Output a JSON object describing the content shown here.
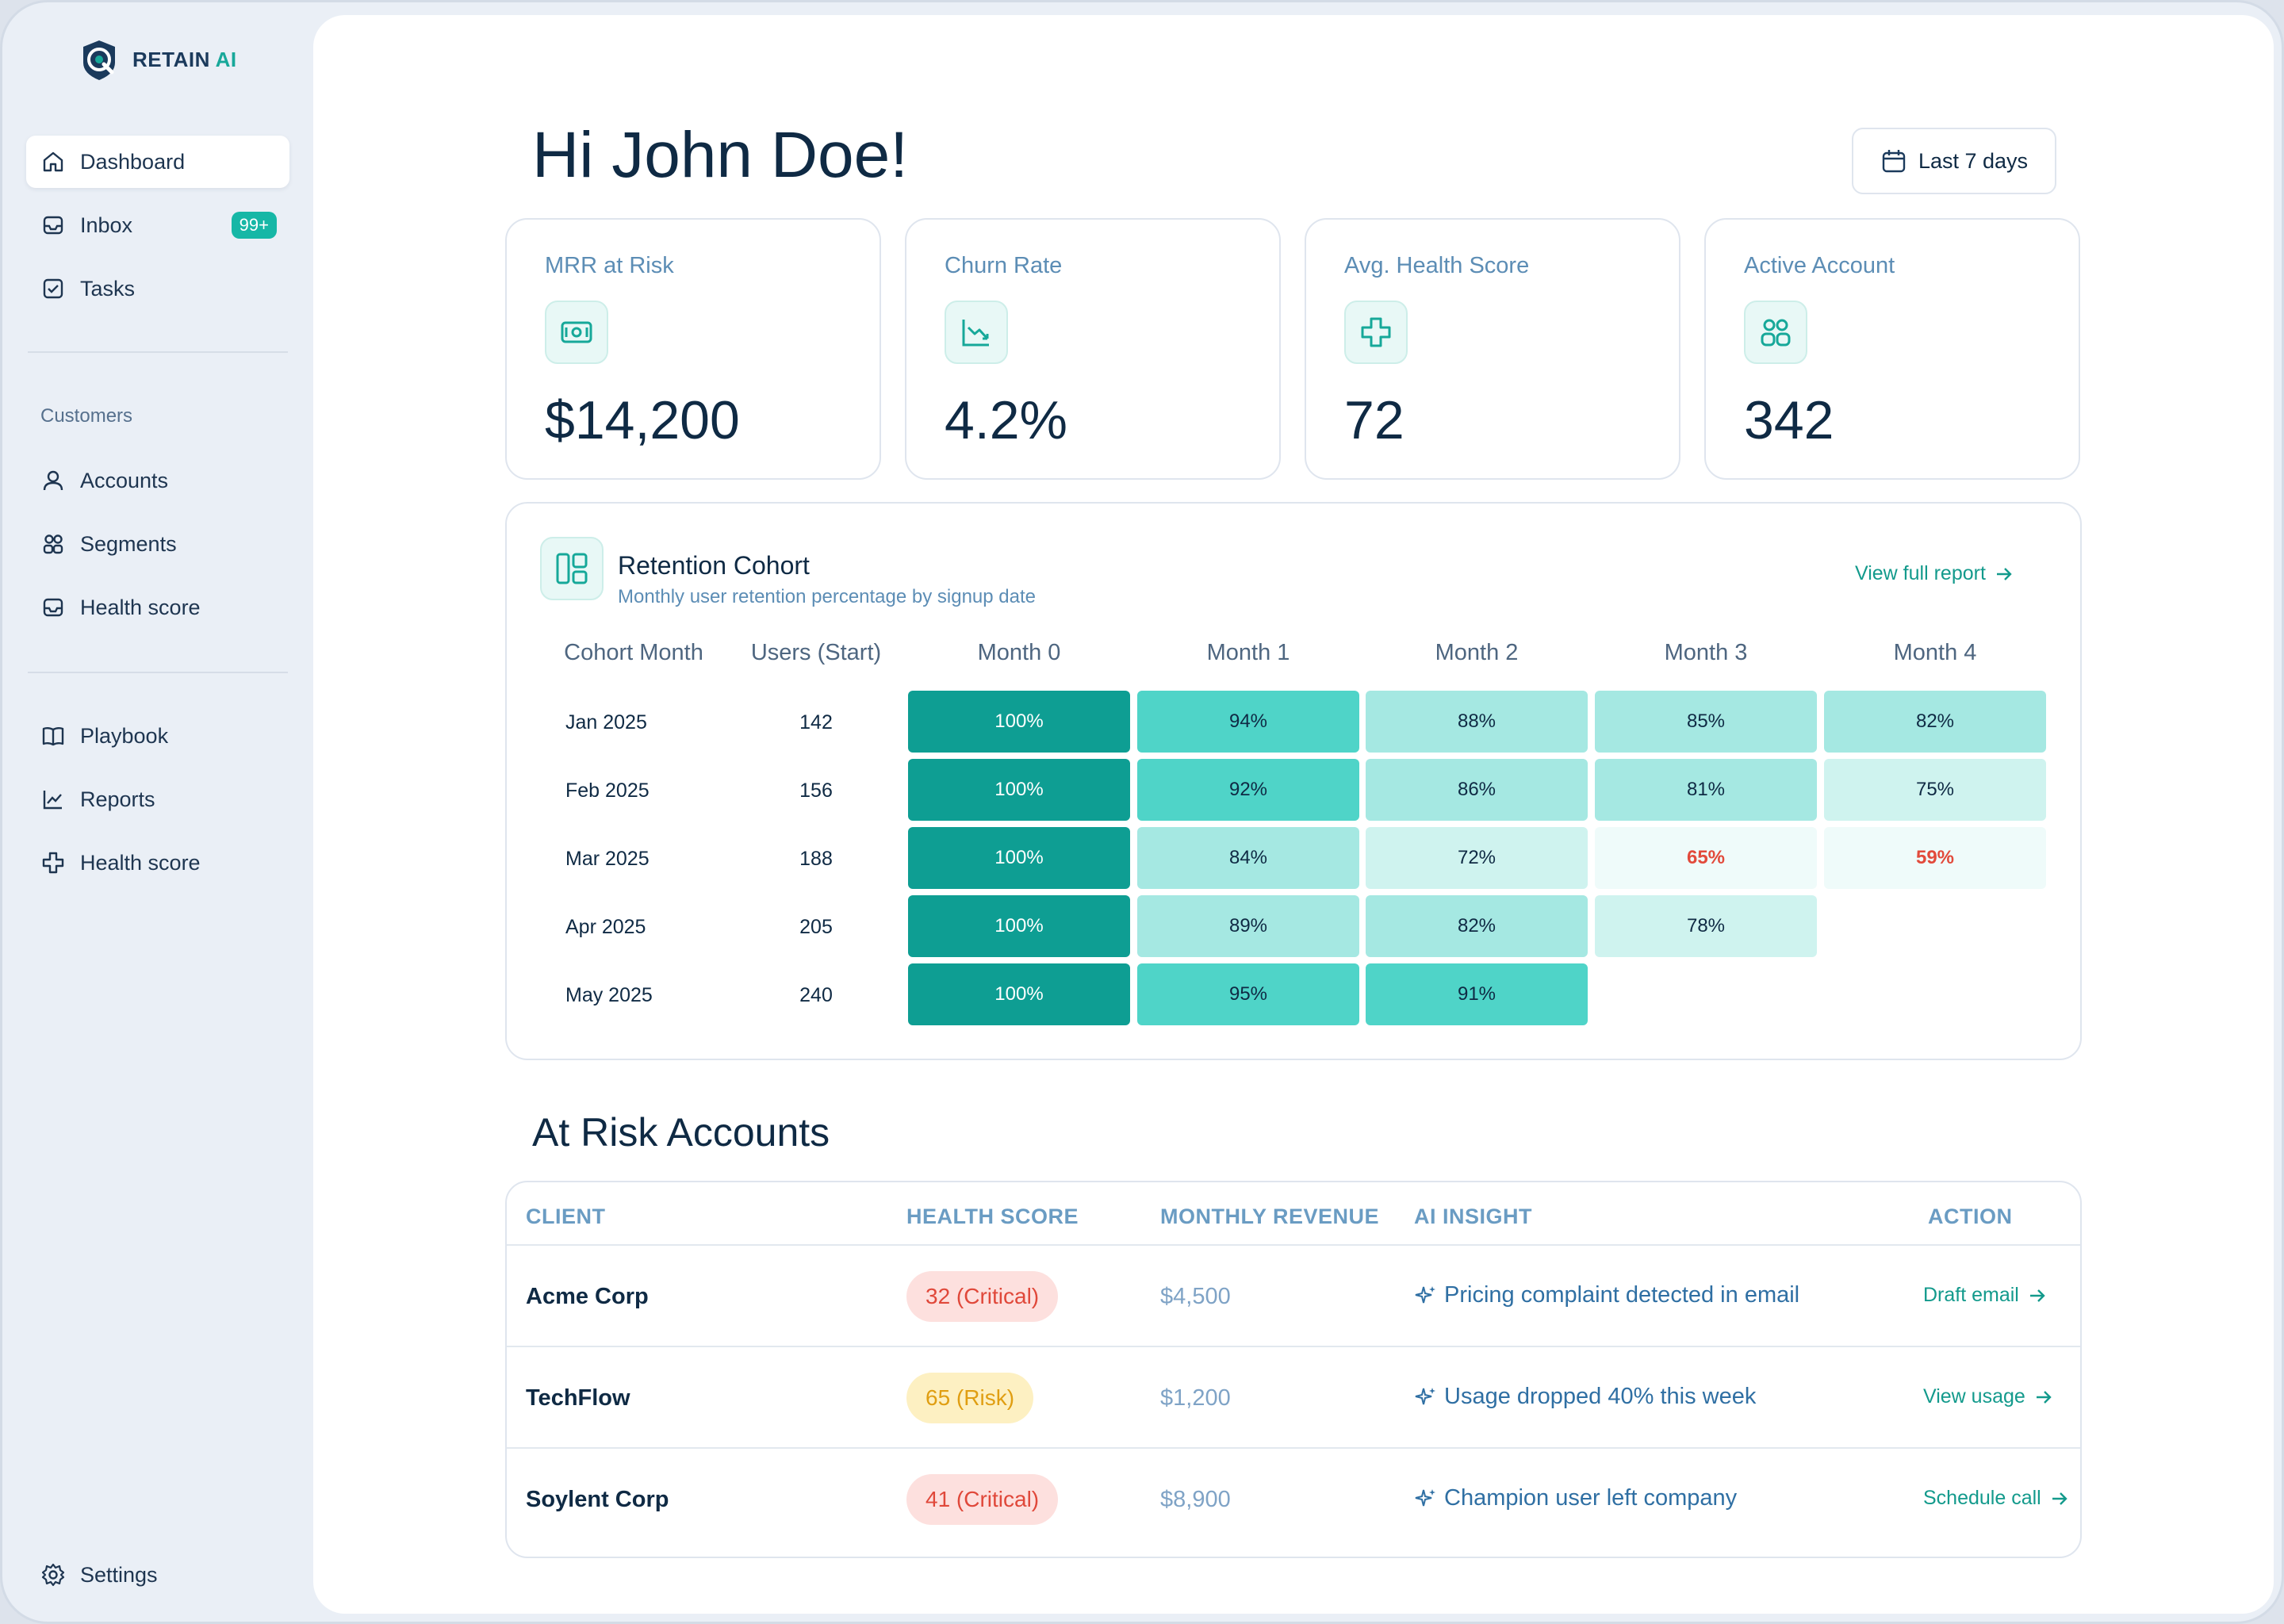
{
  "brand": {
    "name_main": "RETAIN",
    "name_ai": "AI"
  },
  "nav": {
    "dashboard": "Dashboard",
    "inbox": "Inbox",
    "inbox_badge": "99+",
    "tasks": "Tasks",
    "customers_label": "Customers",
    "accounts": "Accounts",
    "segments": "Segments",
    "health_score": "Health score",
    "playbook": "Playbook",
    "reports": "Reports",
    "health_score_2": "Health score",
    "settings": "Settings"
  },
  "header": {
    "greeting": "Hi John Doe!",
    "date_range": "Last 7 days"
  },
  "kpis": [
    {
      "label": "MRR at Risk",
      "value": "$14,200",
      "icon": "money-icon"
    },
    {
      "label": "Churn Rate",
      "value": "4.2%",
      "icon": "trend-down-icon"
    },
    {
      "label": "Avg. Health Score",
      "value": "72",
      "icon": "health-cross-icon"
    },
    {
      "label": "Active Account",
      "value": "342",
      "icon": "users-icon"
    }
  ],
  "cohort": {
    "title": "Retention Cohort",
    "subtitle": "Monthly user retention percentage by signup date",
    "view_link": "View full report",
    "columns": [
      "Cohort Month",
      "Users (Start)",
      "Month 0",
      "Month 1",
      "Month 2",
      "Month 3",
      "Month 4"
    ],
    "rows": [
      {
        "month": "Jan 2025",
        "users": "142",
        "values": [
          "100%",
          "94%",
          "88%",
          "85%",
          "82%"
        ]
      },
      {
        "month": "Feb 2025",
        "users": "156",
        "values": [
          "100%",
          "92%",
          "86%",
          "81%",
          "75%"
        ]
      },
      {
        "month": "Mar 2025",
        "users": "188",
        "values": [
          "100%",
          "84%",
          "72%",
          "65%",
          "59%"
        ]
      },
      {
        "month": "Apr 2025",
        "users": "205",
        "values": [
          "100%",
          "89%",
          "82%",
          "78%"
        ]
      },
      {
        "month": "May 2025",
        "users": "240",
        "values": [
          "100%",
          "95%",
          "91%"
        ]
      }
    ],
    "colors": {
      "high": "#0e9e93",
      "warn_text": "#e24a3b"
    }
  },
  "risk": {
    "title": "At Risk Accounts",
    "headers": [
      "CLIENT",
      "HEALTH SCORE",
      "MONTHLY REVENUE",
      "AI INSIGHT",
      "ACTION"
    ],
    "rows": [
      {
        "client": "Acme Corp",
        "score": "32 (Critical)",
        "level": "critical",
        "revenue": "$4,500",
        "insight": "Pricing complaint detected in email",
        "action": "Draft email"
      },
      {
        "client": "TechFlow",
        "score": "65 (Risk)",
        "level": "risk",
        "revenue": "$1,200",
        "insight": "Usage dropped 40% this week",
        "action": "View usage"
      },
      {
        "client": "Soylent Corp",
        "score": "41 (Critical)",
        "level": "critical",
        "revenue": "$8,900",
        "insight": "Champion user left company",
        "action": "Schedule call"
      }
    ]
  }
}
